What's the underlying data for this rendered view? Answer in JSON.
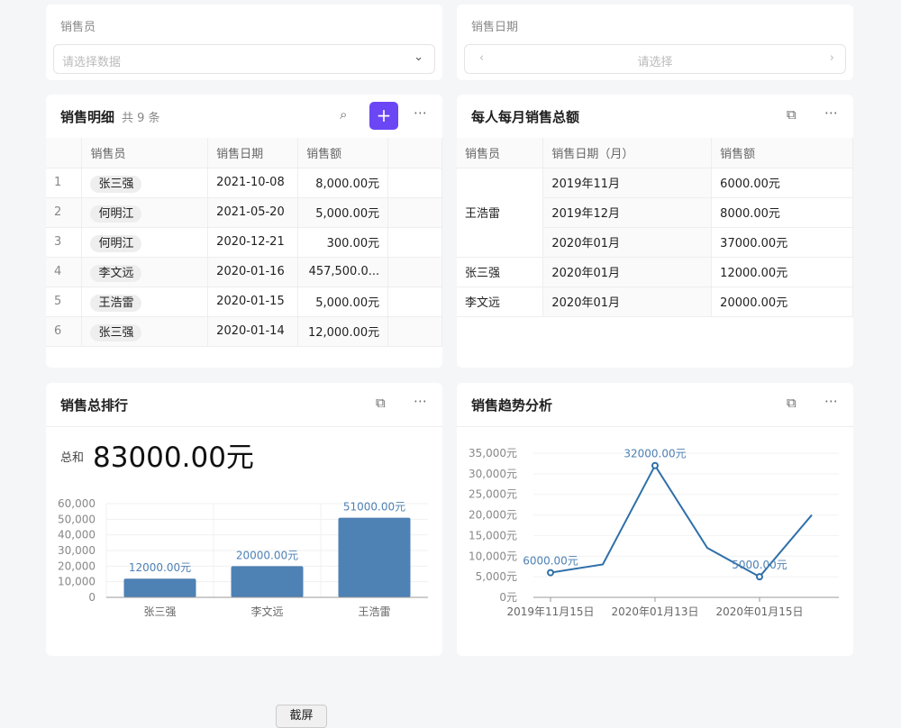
{
  "filters": {
    "salesperson": {
      "label": "销售员",
      "placeholder": "请选择数据"
    },
    "date": {
      "label": "销售日期",
      "placeholder": "请选择"
    }
  },
  "detail": {
    "title": "销售明细",
    "count": "共 9 条",
    "columns": [
      "",
      "销售员",
      "销售日期",
      "销售额",
      ""
    ],
    "rows": [
      [
        "1",
        "张三强",
        "2021-10-08",
        "8,000.00元"
      ],
      [
        "2",
        "何明江",
        "2021-05-20",
        "5,000.00元"
      ],
      [
        "3",
        "何明江",
        "2020-12-21",
        "300.00元"
      ],
      [
        "4",
        "李文远",
        "2020-01-16",
        "457,500.0..."
      ],
      [
        "5",
        "王浩雷",
        "2020-01-15",
        "5,000.00元"
      ],
      [
        "6",
        "张三强",
        "2020-01-14",
        "12,000.00元"
      ]
    ]
  },
  "monthly": {
    "title": "每人每月销售总额",
    "columns": [
      "销售员",
      "销售日期（月）",
      "销售额"
    ],
    "groups": [
      {
        "name": "王浩雷",
        "rows": [
          [
            "2019年11月",
            "6000.00元"
          ],
          [
            "2019年12月",
            "8000.00元"
          ],
          [
            "2020年01月",
            "37000.00元"
          ]
        ]
      },
      {
        "name": "张三强",
        "rows": [
          [
            "2020年01月",
            "12000.00元"
          ]
        ]
      },
      {
        "name": "李文远",
        "rows": [
          [
            "2020年01月",
            "20000.00元"
          ]
        ]
      }
    ]
  },
  "ranking": {
    "title": "销售总排行",
    "total_label": "总和",
    "total_value": "83000.00元"
  },
  "trend": {
    "title": "销售趋势分析"
  },
  "screenshot_button": "截屏",
  "accent": "#6b46f5",
  "chart_data": [
    {
      "type": "bar",
      "categories": [
        "张三强",
        "李文远",
        "王浩雷"
      ],
      "values": [
        12000,
        20000,
        51000
      ],
      "data_labels": [
        "12000.00元",
        "20000.00元",
        "51000.00元"
      ],
      "ylim": [
        0,
        60000
      ],
      "yticks": [
        "0",
        "10,000",
        "20,000",
        "30,000",
        "40,000",
        "50,000",
        "60,000"
      ],
      "grid": true,
      "color": "#4e81b4"
    },
    {
      "type": "line",
      "categories": [
        "2019年11月15日",
        "",
        "2020年01月13日",
        "",
        "2020年01月15日",
        ""
      ],
      "values": [
        6000,
        8000,
        32000,
        12000,
        5000,
        20000
      ],
      "data_labels": {
        "0": "6000.00元",
        "2": "32000.00元",
        "4": "5000.00元"
      },
      "ylim": [
        0,
        35000
      ],
      "yticks": [
        "0元",
        "5,000元",
        "10,000元",
        "15,000元",
        "20,000元",
        "25,000元",
        "30,000元",
        "35,000元"
      ],
      "grid": true,
      "color": "#2e6fa8"
    }
  ]
}
